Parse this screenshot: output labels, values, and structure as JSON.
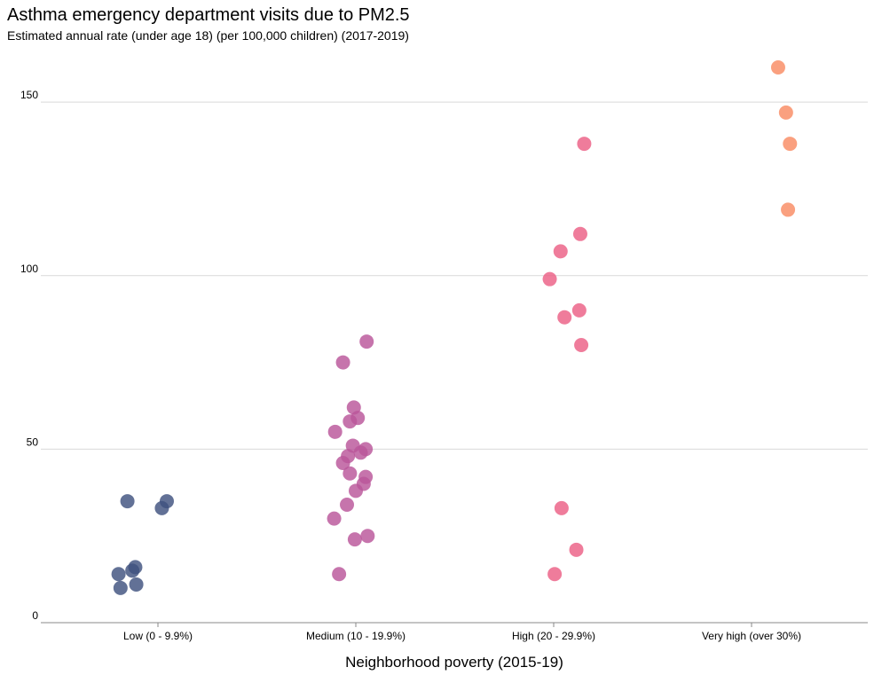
{
  "chart_data": {
    "type": "scatter",
    "title": "Asthma emergency department visits due to PM2.5",
    "subtitle": "Estimated annual rate (under age 18) (per 100,000 children) (2017-2019)",
    "xlabel": "Neighborhood poverty (2015-19)",
    "ylabel": "",
    "ylim": [
      0,
      160
    ],
    "yticks": [
      0,
      50,
      100,
      150
    ],
    "ytick_labels": [
      "0",
      "50",
      "100",
      "150"
    ],
    "grid": true,
    "categories": [
      "Low (0 - 9.9%)",
      "Medium (10 - 19.9%)",
      "High (20 - 29.9%)",
      "Very high (over 30%)"
    ],
    "series": [
      {
        "category": "Low (0 - 9.9%)",
        "color": "#3f527f",
        "points": [
          {
            "jitter": -0.31,
            "y": 35
          },
          {
            "jitter": 0.09,
            "y": 35
          },
          {
            "jitter": 0.04,
            "y": 33
          },
          {
            "jitter": -0.23,
            "y": 16
          },
          {
            "jitter": -0.26,
            "y": 15
          },
          {
            "jitter": -0.4,
            "y": 14
          },
          {
            "jitter": -0.22,
            "y": 11
          },
          {
            "jitter": -0.38,
            "y": 10
          }
        ]
      },
      {
        "category": "Medium (10 - 19.9%)",
        "color": "#b9559a",
        "points": [
          {
            "jitter": 0.11,
            "y": 81
          },
          {
            "jitter": -0.13,
            "y": 75
          },
          {
            "jitter": -0.02,
            "y": 62
          },
          {
            "jitter": 0.02,
            "y": 59
          },
          {
            "jitter": -0.06,
            "y": 58
          },
          {
            "jitter": -0.21,
            "y": 55
          },
          {
            "jitter": -0.03,
            "y": 51
          },
          {
            "jitter": 0.1,
            "y": 50
          },
          {
            "jitter": 0.05,
            "y": 49
          },
          {
            "jitter": -0.08,
            "y": 48
          },
          {
            "jitter": -0.13,
            "y": 46
          },
          {
            "jitter": -0.06,
            "y": 43
          },
          {
            "jitter": 0.1,
            "y": 42
          },
          {
            "jitter": 0.08,
            "y": 40
          },
          {
            "jitter": 0.0,
            "y": 38
          },
          {
            "jitter": -0.09,
            "y": 34
          },
          {
            "jitter": -0.22,
            "y": 30
          },
          {
            "jitter": 0.12,
            "y": 25
          },
          {
            "jitter": -0.01,
            "y": 24
          },
          {
            "jitter": -0.17,
            "y": 14
          }
        ]
      },
      {
        "category": "High (20 - 29.9%)",
        "color": "#eb5f85",
        "points": [
          {
            "jitter": 0.31,
            "y": 138
          },
          {
            "jitter": 0.27,
            "y": 112
          },
          {
            "jitter": 0.07,
            "y": 107
          },
          {
            "jitter": -0.04,
            "y": 99
          },
          {
            "jitter": 0.26,
            "y": 90
          },
          {
            "jitter": 0.11,
            "y": 88
          },
          {
            "jitter": 0.28,
            "y": 80
          },
          {
            "jitter": 0.08,
            "y": 33
          },
          {
            "jitter": 0.23,
            "y": 21
          },
          {
            "jitter": 0.01,
            "y": 14
          }
        ]
      },
      {
        "category": "Very high (over 30%)",
        "color": "#f98b63",
        "points": [
          {
            "jitter": 0.27,
            "y": 160
          },
          {
            "jitter": 0.35,
            "y": 147
          },
          {
            "jitter": 0.39,
            "y": 138
          },
          {
            "jitter": 0.37,
            "y": 119
          }
        ]
      }
    ]
  }
}
